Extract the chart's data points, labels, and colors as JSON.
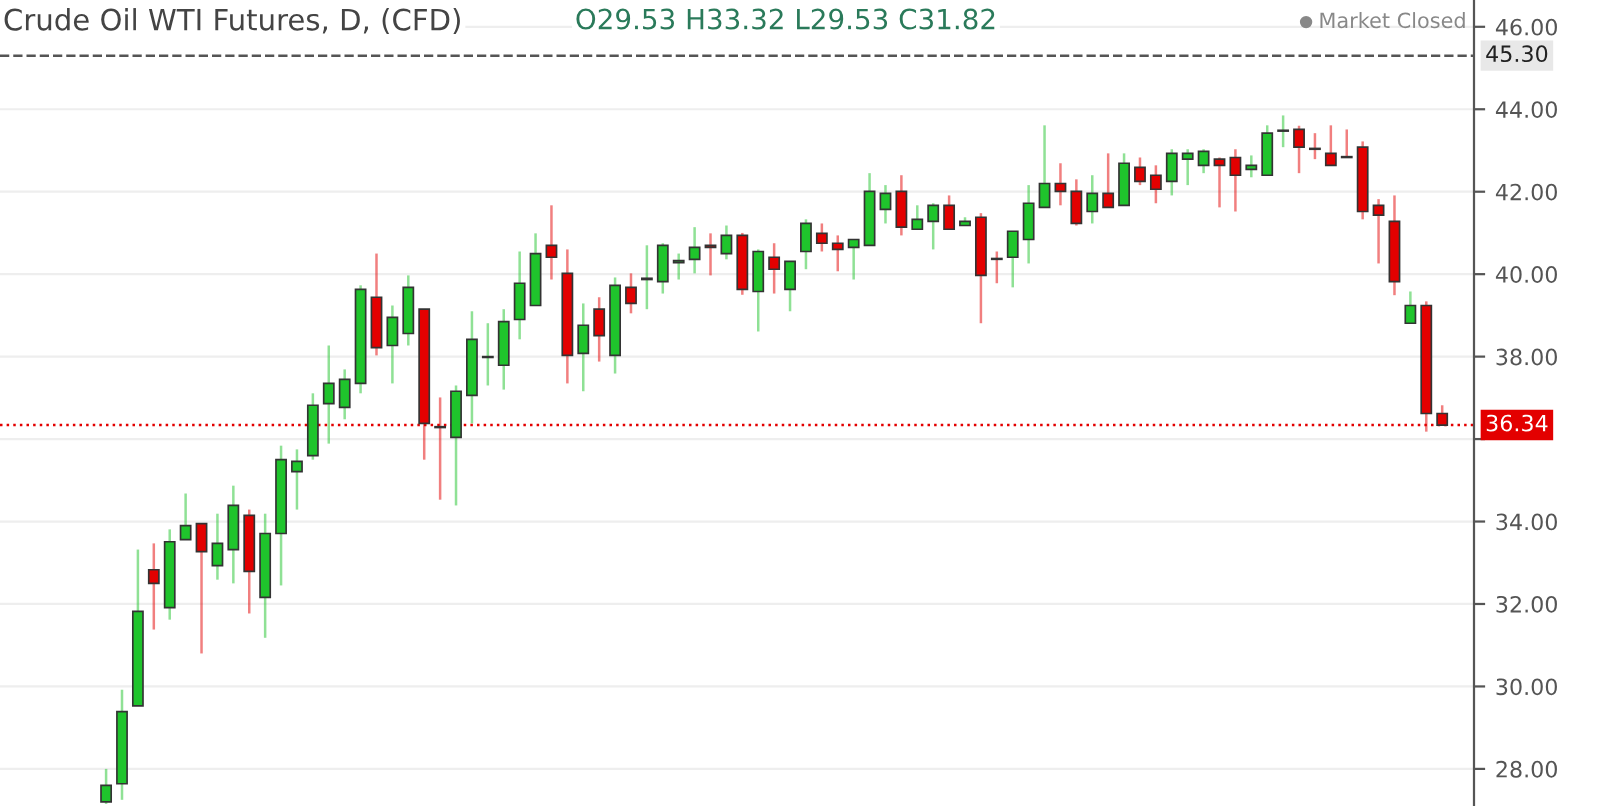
{
  "chart_data": {
    "type": "candlestick",
    "title": "Crude Oil WTI Futures, D, (CFD)",
    "annotations": [
      "O29.53 H33.32 L29.53 C31.82",
      "Market Closed"
    ],
    "categories": [
      null,
      null,
      null,
      null,
      null,
      null,
      null,
      null,
      null,
      null,
      null,
      null,
      null,
      null,
      null,
      null,
      null,
      null,
      null,
      null,
      null,
      null,
      null,
      null,
      null,
      null,
      null,
      null,
      null,
      null,
      null,
      null,
      null,
      null,
      null,
      null,
      null,
      null,
      null,
      null,
      null,
      null,
      null,
      null,
      null,
      null,
      null,
      null,
      null,
      null,
      null,
      null,
      null,
      null,
      null,
      null,
      null,
      null,
      null,
      null,
      null,
      null,
      null,
      null,
      null,
      null,
      null,
      null,
      null,
      null,
      null,
      null,
      null,
      null,
      null,
      null,
      null,
      null,
      null,
      null,
      null,
      null,
      null,
      null,
      null
    ],
    "ohlc": [
      [
        27.2,
        28.0,
        27.15,
        27.6
      ],
      [
        27.64,
        29.92,
        27.25,
        29.39
      ],
      [
        29.53,
        33.32,
        29.53,
        31.82
      ],
      [
        32.83,
        33.47,
        31.38,
        32.5
      ],
      [
        31.91,
        33.81,
        31.62,
        33.51
      ],
      [
        33.56,
        34.68,
        33.56,
        33.9
      ],
      [
        33.95,
        33.95,
        30.8,
        33.27
      ],
      [
        32.93,
        34.19,
        32.59,
        33.47
      ],
      [
        33.32,
        34.87,
        32.5,
        34.39
      ],
      [
        34.15,
        34.29,
        31.77,
        32.79
      ],
      [
        32.16,
        34.19,
        31.18,
        33.71
      ],
      [
        33.71,
        35.84,
        32.45,
        35.5
      ],
      [
        35.21,
        35.75,
        34.29,
        35.46
      ],
      [
        35.6,
        37.11,
        35.5,
        36.82
      ],
      [
        36.86,
        38.27,
        35.89,
        37.35
      ],
      [
        36.77,
        37.69,
        36.48,
        37.45
      ],
      [
        37.35,
        39.73,
        37.11,
        39.63
      ],
      [
        39.44,
        40.5,
        38.03,
        38.22
      ],
      [
        38.27,
        39.24,
        37.35,
        38.95
      ],
      [
        38.56,
        39.97,
        38.27,
        39.68
      ],
      [
        39.15,
        39.15,
        35.5,
        36.38
      ],
      [
        36.3,
        37.01,
        34.53,
        36.28
      ],
      [
        36.04,
        37.3,
        34.39,
        37.16
      ],
      [
        37.06,
        39.1,
        36.38,
        38.42
      ],
      [
        37.98,
        38.81,
        37.3,
        38.0
      ],
      [
        37.79,
        39.15,
        37.2,
        38.85
      ],
      [
        38.9,
        40.55,
        38.42,
        39.78
      ],
      [
        39.24,
        40.99,
        39.24,
        40.5
      ],
      [
        40.7,
        41.67,
        39.87,
        40.41
      ],
      [
        40.02,
        40.6,
        37.35,
        38.03
      ],
      [
        38.08,
        39.29,
        37.16,
        38.76
      ],
      [
        39.15,
        39.44,
        37.88,
        38.51
      ],
      [
        38.03,
        39.92,
        37.59,
        39.73
      ],
      [
        39.68,
        40.02,
        39.05,
        39.29
      ],
      [
        39.87,
        40.7,
        39.15,
        39.9
      ],
      [
        39.82,
        40.75,
        39.53,
        40.7
      ],
      [
        40.28,
        40.5,
        39.87,
        40.33
      ],
      [
        40.36,
        41.14,
        40.02,
        40.65
      ],
      [
        40.7,
        40.99,
        39.97,
        40.65
      ],
      [
        40.5,
        41.18,
        40.36,
        40.94
      ],
      [
        40.94,
        41.0,
        39.5,
        39.63
      ],
      [
        39.58,
        40.6,
        38.61,
        40.55
      ],
      [
        40.41,
        40.75,
        39.53,
        40.12
      ],
      [
        39.63,
        40.31,
        39.1,
        40.31
      ],
      [
        40.55,
        41.33,
        40.12,
        41.23
      ],
      [
        40.99,
        41.23,
        40.55,
        40.75
      ],
      [
        40.75,
        40.94,
        40.07,
        40.6
      ],
      [
        40.65,
        40.84,
        39.87,
        40.84
      ],
      [
        40.7,
        42.45,
        40.7,
        42.01
      ],
      [
        41.57,
        42.16,
        41.23,
        41.96
      ],
      [
        42.01,
        42.4,
        40.94,
        41.14
      ],
      [
        41.09,
        41.67,
        41.09,
        41.33
      ],
      [
        41.28,
        41.72,
        40.6,
        41.67
      ],
      [
        41.67,
        41.91,
        41.09,
        41.09
      ],
      [
        41.18,
        41.38,
        41.18,
        41.28
      ],
      [
        41.38,
        41.48,
        38.81,
        39.97
      ],
      [
        40.38,
        40.55,
        39.78,
        40.36
      ],
      [
        40.41,
        41.04,
        39.68,
        41.04
      ],
      [
        40.84,
        42.16,
        40.26,
        41.72
      ],
      [
        41.62,
        43.61,
        41.62,
        42.2
      ],
      [
        42.2,
        42.69,
        41.67,
        42.01
      ],
      [
        42.01,
        42.3,
        41.18,
        41.23
      ],
      [
        41.52,
        42.4,
        41.23,
        41.96
      ],
      [
        41.96,
        42.93,
        41.62,
        41.62
      ],
      [
        41.67,
        42.93,
        41.67,
        42.69
      ],
      [
        42.59,
        42.83,
        42.16,
        42.25
      ],
      [
        42.4,
        42.64,
        41.72,
        42.06
      ],
      [
        42.25,
        43.03,
        41.91,
        42.93
      ],
      [
        42.79,
        43.03,
        42.16,
        42.93
      ],
      [
        42.64,
        43.03,
        42.45,
        42.98
      ],
      [
        42.79,
        42.83,
        41.62,
        42.64
      ],
      [
        42.83,
        43.03,
        41.52,
        42.4
      ],
      [
        42.54,
        42.88,
        42.35,
        42.64
      ],
      [
        42.4,
        43.61,
        42.4,
        43.42
      ],
      [
        43.47,
        43.85,
        43.08,
        43.49
      ],
      [
        43.51,
        43.6,
        42.45,
        43.08
      ],
      [
        43.05,
        43.42,
        42.79,
        43.03
      ],
      [
        42.93,
        43.61,
        42.64,
        42.64
      ],
      [
        42.85,
        43.51,
        42.83,
        42.83
      ],
      [
        43.08,
        43.22,
        41.33,
        41.52
      ],
      [
        41.67,
        41.82,
        40.26,
        41.43
      ],
      [
        41.28,
        41.91,
        39.49,
        39.82
      ],
      [
        38.81,
        39.58,
        38.81,
        39.24
      ],
      [
        39.24,
        39.34,
        36.18,
        36.62
      ],
      [
        36.62,
        36.82,
        36.33,
        36.34
      ]
    ],
    "colors": [
      "#1fc42c",
      "#1fc42c",
      "#1fc42c",
      "#e30000",
      "#1fc42c",
      "#1fc42c",
      "#e30000",
      "#1fc42c",
      "#1fc42c",
      "#e30000",
      "#1fc42c",
      "#1fc42c",
      "#1fc42c",
      "#1fc42c",
      "#1fc42c",
      "#1fc42c",
      "#1fc42c",
      "#e30000",
      "#1fc42c",
      "#1fc42c",
      "#e30000",
      "#e30000",
      "#1fc42c",
      "#1fc42c",
      "#1fc42c",
      "#1fc42c",
      "#1fc42c",
      "#1fc42c",
      "#e30000",
      "#e30000",
      "#1fc42c",
      "#e30000",
      "#1fc42c",
      "#e30000",
      "#1fc42c",
      "#1fc42c",
      "#1fc42c",
      "#1fc42c",
      "#e30000",
      "#1fc42c",
      "#e30000",
      "#1fc42c",
      "#e30000",
      "#1fc42c",
      "#1fc42c",
      "#e30000",
      "#e30000",
      "#1fc42c",
      "#1fc42c",
      "#1fc42c",
      "#e30000",
      "#1fc42c",
      "#1fc42c",
      "#e30000",
      "#1fc42c",
      "#e30000",
      "#e30000",
      "#1fc42c",
      "#1fc42c",
      "#1fc42c",
      "#e30000",
      "#e30000",
      "#1fc42c",
      "#e30000",
      "#1fc42c",
      "#e30000",
      "#e30000",
      "#1fc42c",
      "#1fc42c",
      "#1fc42c",
      "#e30000",
      "#e30000",
      "#1fc42c",
      "#1fc42c",
      "#1fc42c",
      "#e30000",
      "#e30000",
      "#e30000",
      "#e30000",
      "#e30000",
      "#e30000",
      "#e30000",
      "#1fc42c",
      "#e30000",
      "#e30000"
    ],
    "ylim": [
      27.1,
      46.65
    ],
    "yticks": [
      {
        "value": 28,
        "label": "28.00"
      },
      {
        "value": 30,
        "label": "30.00"
      },
      {
        "value": 32,
        "label": "32.00"
      },
      {
        "value": 34,
        "label": "34.00"
      },
      {
        "value": 36,
        "label": null
      },
      {
        "value": 38,
        "label": "38.00"
      },
      {
        "value": 40,
        "label": "40.00"
      },
      {
        "value": 42,
        "label": "42.00"
      },
      {
        "value": 44,
        "label": "44.00"
      },
      {
        "value": 46,
        "label": "46.00"
      }
    ],
    "ref_lines": [
      {
        "axis": "y",
        "value": 36.34,
        "label": "36.34",
        "color": "#e30000",
        "line_style": "dotted"
      },
      {
        "axis": "y",
        "value": 45.3,
        "label": "45.30",
        "color": "#555555",
        "line_style": "dashed"
      }
    ],
    "grid": "y"
  }
}
